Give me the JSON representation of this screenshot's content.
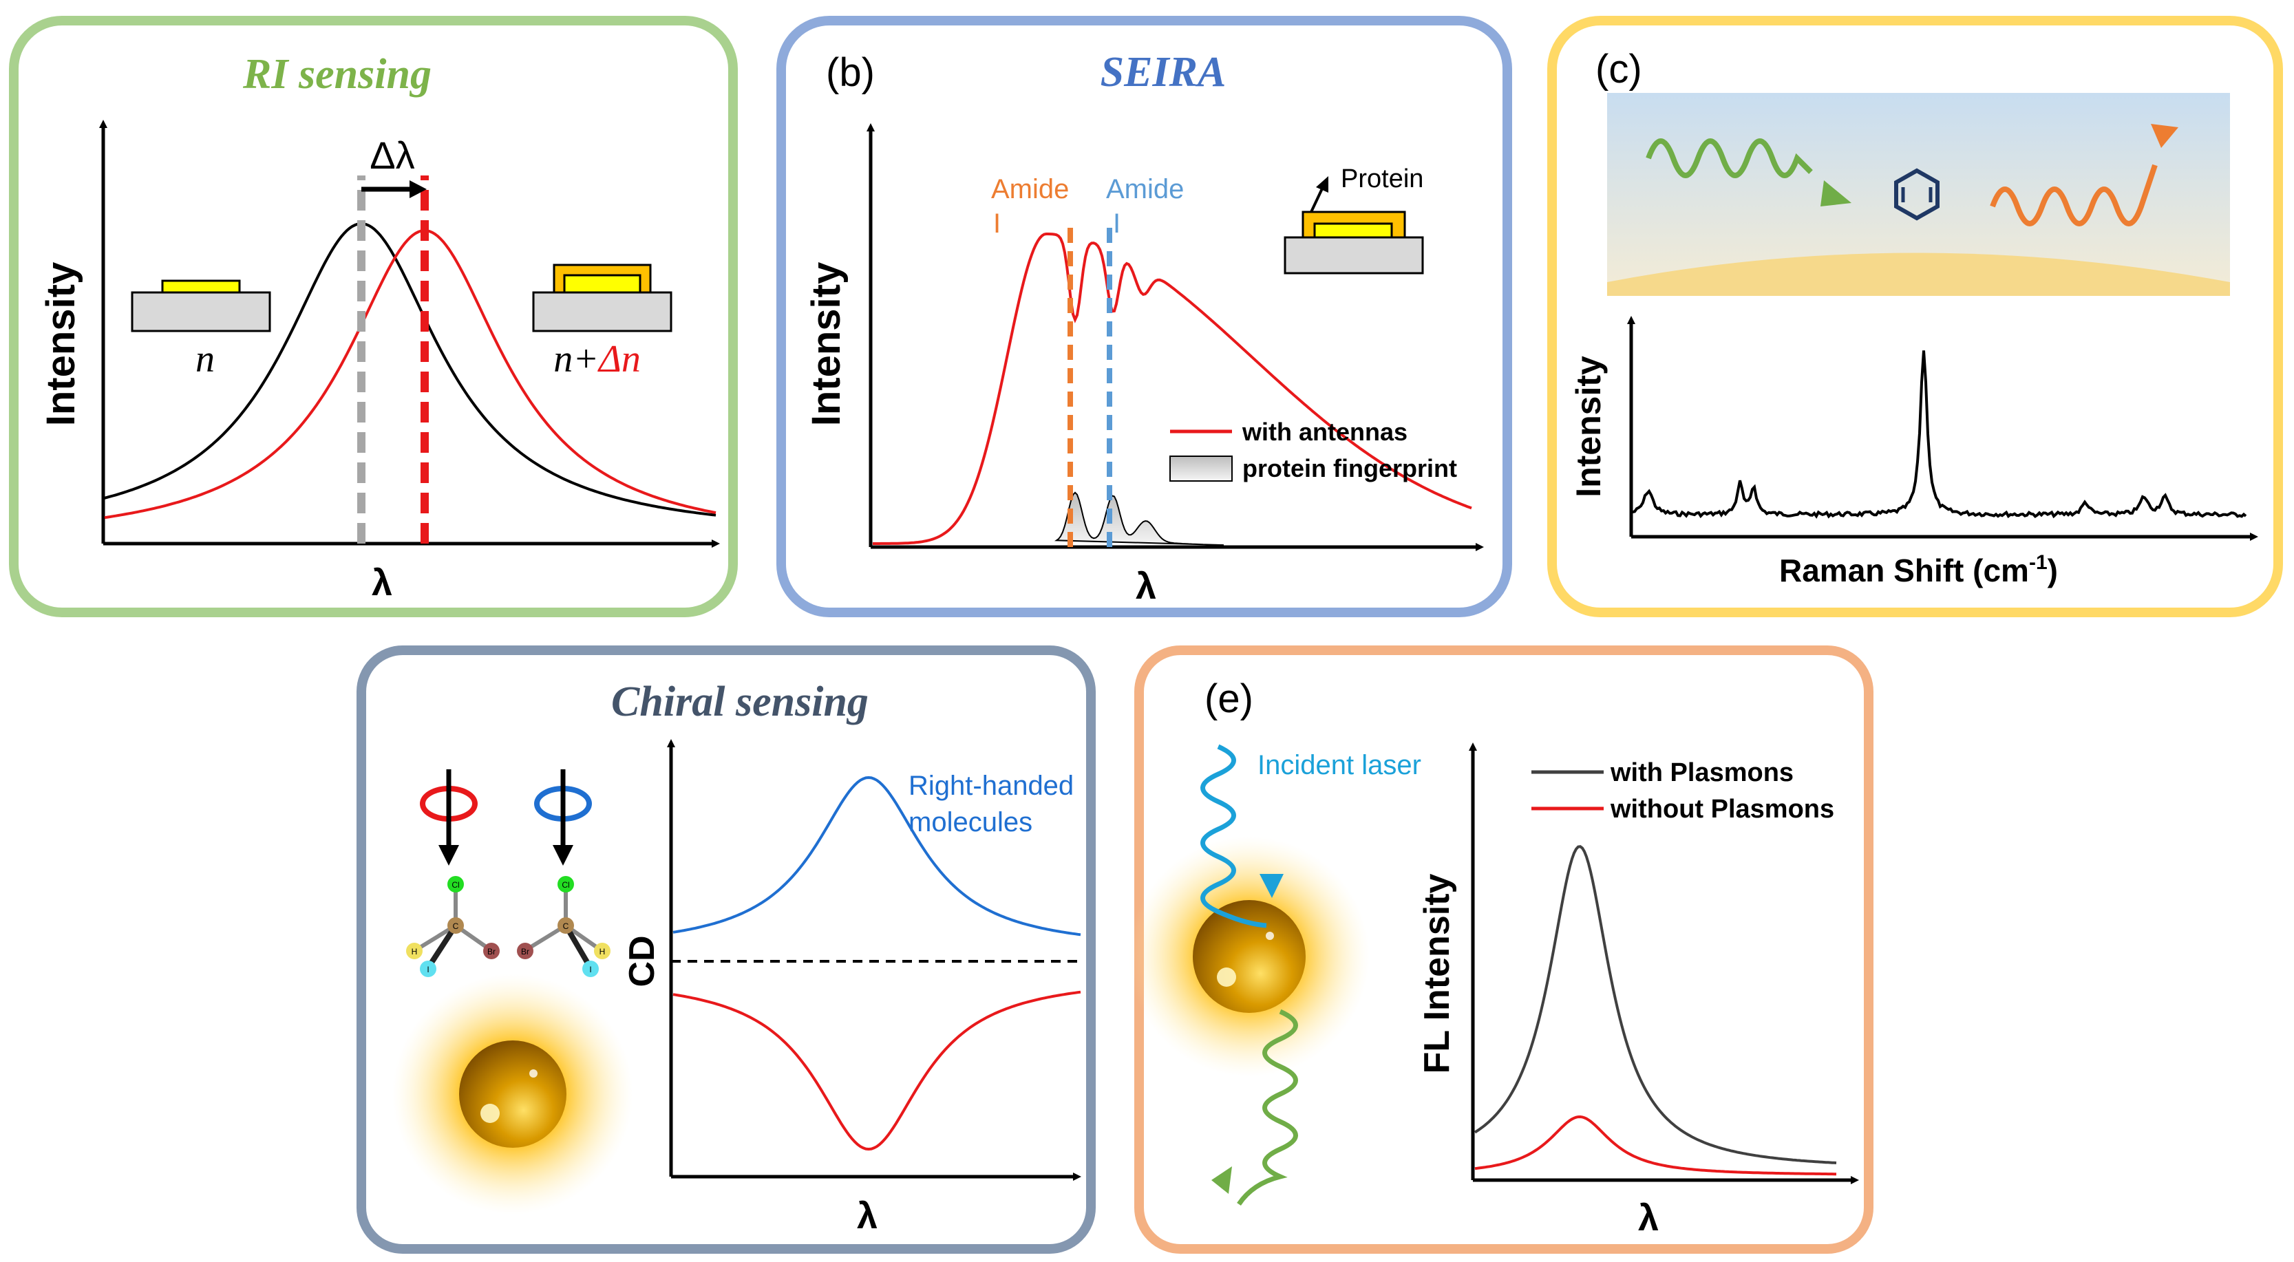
{
  "colors": {
    "panel_a": "#a9d18e",
    "panel_b": "#8eaadb",
    "panel_c": "#ffd966",
    "panel_d": "#8497b0",
    "panel_e": "#f4b183",
    "red": "#e8191b",
    "gray_dash": "#a6a6a6",
    "orange": "#ed7d31",
    "blue": "#1f6fd1",
    "green": "#70ad47",
    "cyan": "#1ba1d9",
    "gold": "#f5b800"
  },
  "panel_a": {
    "title": "RI sensing",
    "ylabel": "Intensity",
    "xlabel": "λ",
    "delta_label": "Δλ",
    "n_label": "n",
    "n2_prefix": "n+",
    "n2_suffix": "Δn"
  },
  "panel_b": {
    "tag": "(b)",
    "title": "SEIRA",
    "ylabel": "Intensity",
    "xlabel": "λ",
    "amide1_a": "Amide",
    "amide1_b": "I",
    "amide2_a": "Amide",
    "amide2_b": "I",
    "protein": "Protein",
    "legend": [
      "with antennas",
      "protein fingerprint"
    ]
  },
  "panel_c": {
    "tag": "(c)",
    "ylabel": "Intensity",
    "xlabel": "Raman Shift (cm",
    "xlabel_sup": "-1",
    "xlabel_end": ")"
  },
  "panel_d": {
    "title": "Chiral sensing",
    "ylabel": "CD",
    "xlabel": "λ",
    "annotation_a": "Right-handed",
    "annotation_b": "molecules",
    "atoms": {
      "cl": "Cl",
      "c": "C",
      "br": "Br",
      "h": "H",
      "i": "I"
    }
  },
  "panel_e": {
    "tag": "(e)",
    "incident": "Incident  laser",
    "ylabel": "FL Intensity",
    "xlabel": "λ",
    "legend": [
      "with Plasmons",
      "without Plasmons"
    ]
  }
}
